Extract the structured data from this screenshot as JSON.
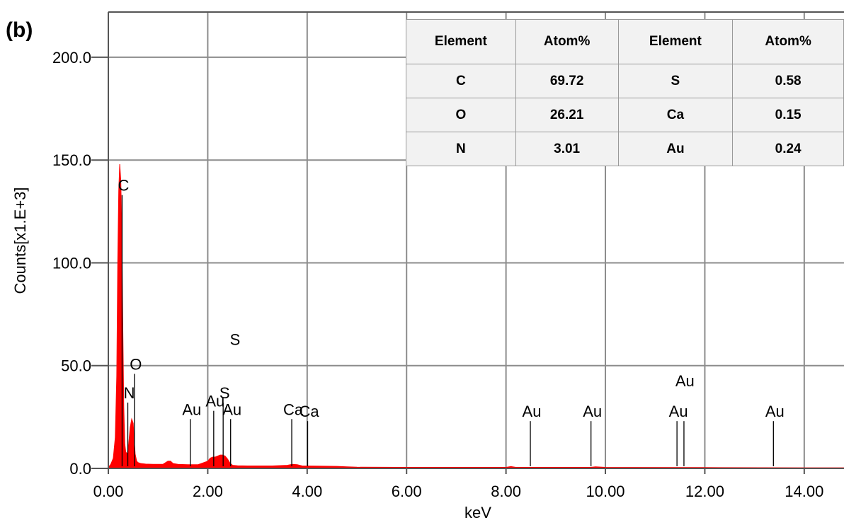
{
  "panel_label": "(b)",
  "colors": {
    "spectrum": "#ff0000",
    "grid": "#8c8c8c",
    "marker": "#000000"
  },
  "table": {
    "headers": [
      "Element",
      "Atom%",
      "Element",
      "Atom%"
    ],
    "rows": [
      [
        "C",
        "69.72",
        "S",
        "0.58"
      ],
      [
        "O",
        "26.21",
        "Ca",
        "0.15"
      ],
      [
        "N",
        "3.01",
        "Au",
        "0.24"
      ]
    ]
  },
  "chart_data": {
    "type": "area",
    "title": "",
    "xlabel": "keV",
    "ylabel": "Counts[x1.E+3]",
    "xlim": [
      0,
      14.8
    ],
    "ylim": [
      0,
      222
    ],
    "x_ticks": [
      0,
      2,
      4,
      6,
      8,
      10,
      12,
      14
    ],
    "x_tick_labels": [
      "0.00",
      "2.00",
      "4.00",
      "6.00",
      "8.00",
      "10.00",
      "12.00",
      "14.00"
    ],
    "y_ticks": [
      0,
      50,
      100,
      150,
      200
    ],
    "y_tick_labels": [
      "0.0",
      "50.0",
      "100.0",
      "150.0",
      "200.0"
    ],
    "grid": true,
    "series": [
      {
        "x": [
          0.0,
          0.05,
          0.1,
          0.14,
          0.17,
          0.19,
          0.21,
          0.23,
          0.25,
          0.27,
          0.29,
          0.31,
          0.33,
          0.35,
          0.38,
          0.41,
          0.44,
          0.47,
          0.5,
          0.52,
          0.54,
          0.57,
          0.6,
          0.65,
          0.75,
          0.9,
          1.1,
          1.2,
          1.25,
          1.3,
          1.4,
          1.6,
          1.8,
          2.0,
          2.05,
          2.1,
          2.15,
          2.2,
          2.25,
          2.3,
          2.35,
          2.4,
          2.45,
          2.5,
          2.6,
          2.8,
          3.0,
          3.3,
          3.6,
          3.7,
          3.8,
          3.9,
          4.2,
          4.6,
          4.8,
          5.0,
          6.0,
          8.0,
          8.1,
          8.2,
          9.0,
          9.7,
          9.8,
          10.0,
          12.0,
          14.0,
          14.8
        ],
        "y": [
          0.5,
          2,
          5,
          15,
          45,
          100,
          135,
          148,
          140,
          115,
          70,
          30,
          12,
          8,
          7,
          12,
          20,
          24,
          22,
          14,
          7,
          3.5,
          2.8,
          2.4,
          2.1,
          2.0,
          2.0,
          3.5,
          3.5,
          2.4,
          2.0,
          1.8,
          1.8,
          3.5,
          5,
          5.5,
          5.5,
          6,
          6.5,
          6.5,
          6,
          4.5,
          2.5,
          1.5,
          1.3,
          1.2,
          1.2,
          1.2,
          1.5,
          2,
          1.8,
          1.2,
          1.1,
          1.0,
          0.8,
          0.6,
          0.5,
          0.5,
          0.9,
          0.5,
          0.5,
          0.5,
          0.8,
          0.5,
          0.4,
          0.3,
          0.3
        ]
      }
    ],
    "peak_markers": [
      {
        "x": 0.277,
        "y_top": 133,
        "label": "C"
      },
      {
        "x": 0.392,
        "y_top": 32,
        "label": "N"
      },
      {
        "x": 0.525,
        "y_top": 46,
        "label": "O"
      },
      {
        "x": 1.65,
        "y_top": 24,
        "label": "Au"
      },
      {
        "x": 2.12,
        "y_top": 28,
        "label": "Au"
      },
      {
        "x": 2.31,
        "y_top": 32,
        "label": "S"
      },
      {
        "x": 2.46,
        "y_top": 24,
        "label": "Au"
      },
      {
        "x": 3.69,
        "y_top": 24,
        "label": "Ca"
      },
      {
        "x": 4.01,
        "y_top": 23,
        "label": "Ca"
      },
      {
        "x": 8.49,
        "y_top": 23,
        "label": "Au"
      },
      {
        "x": 9.71,
        "y_top": 23,
        "label": "Au"
      },
      {
        "x": 11.44,
        "y_top": 23,
        "label": "Au"
      },
      {
        "x": 11.58,
        "y_top": 23,
        "label": ""
      },
      {
        "x": 13.38,
        "y_top": 23,
        "label": "Au"
      }
    ],
    "extra_labels": [
      {
        "x": 2.55,
        "y": 60,
        "label": "S"
      },
      {
        "x": 11.6,
        "y": 40,
        "label": "Au"
      }
    ]
  }
}
